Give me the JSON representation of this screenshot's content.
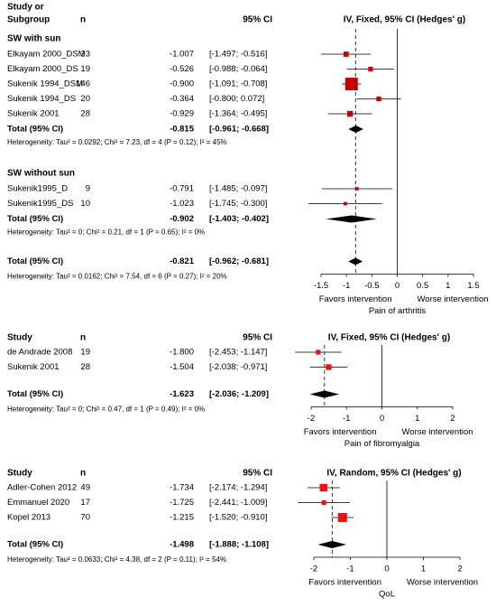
{
  "chart_data": [
    {
      "type": "forest",
      "study_header": [
        "Study or",
        "Subgroup"
      ],
      "n_header": "n",
      "ci_header": "95% CI",
      "plot_title": "IV, Fixed, 95% CI (Hedges' g)",
      "groups": [
        {
          "name": "SW with sun",
          "studies": [
            {
              "name": "Elkayam 2000_DSM",
              "n": 23,
              "value": -1.007,
              "ci": [
                -1.497,
                -0.516
              ],
              "ci_label": "[-1.497; -0.516]"
            },
            {
              "name": "Elkayam 2000_DS",
              "n": 19,
              "value": -0.526,
              "ci": [
                -0.988,
                -0.064
              ],
              "ci_label": "[-0.988; -0.064]"
            },
            {
              "name": "Sukenik 1994_DSM",
              "n": 146,
              "value": -0.9,
              "value_label": "-0.900",
              "ci": [
                -1.091,
                -0.708
              ],
              "ci_label": "[-1.091; -0.708]"
            },
            {
              "name": "Sukenik 1994_DS",
              "n": 20,
              "value": -0.364,
              "ci": [
                -0.8,
                0.072
              ],
              "ci_label": "[-0.800;  0.072]"
            },
            {
              "name": "Sukenik 2001",
              "n": 28,
              "value": -0.929,
              "ci": [
                -1.364,
                -0.495
              ],
              "ci_label": "[-1.364; -0.495]"
            }
          ],
          "total": {
            "name": "Total (95% CI)",
            "value": -0.815,
            "ci": [
              -0.961,
              -0.668
            ],
            "ci_label": "[-0.961; -0.668]"
          },
          "heterogeneity": "Heterogeneity: Tau² = 0.0292; Chi² = 7.23, df = 4 (P = 0.12); I² = 45%"
        },
        {
          "name": "SW without sun",
          "studies": [
            {
              "name": "Sukenik1995_D",
              "n": 9,
              "value": -0.791,
              "ci": [
                -1.485,
                -0.097
              ],
              "ci_label": "[-1.485; -0.097]"
            },
            {
              "name": "Sukenik1995_DS",
              "n": 10,
              "value": -1.023,
              "ci": [
                -1.745,
                -0.3
              ],
              "ci_label": "[-1.745; -0.300]"
            }
          ],
          "total": {
            "name": "Total (95% CI)",
            "value": -0.902,
            "ci": [
              -1.403,
              -0.402
            ],
            "ci_label": "[-1.403; -0.402]"
          },
          "heterogeneity": "Heterogeneity: Tau² = 0; Chi² = 0.21, df = 1 (P = 0.65); I² = 0%"
        }
      ],
      "total": {
        "name": "Total (95% CI)",
        "value": -0.821,
        "ci": [
          -0.962,
          -0.681
        ],
        "ci_label": "[-0.962; -0.681]"
      },
      "heterogeneity": "Heterogeneity: Tau² = 0.0162; Chi² = 7.54, df = 6 (P = 0.27); I² = 20%",
      "xlim": [
        -1.5,
        1.5
      ],
      "xticks": [
        -1.5,
        -1,
        -0.5,
        0,
        0.5,
        1,
        1.5
      ],
      "favors_left": "Favors intervention",
      "favors_right": "Worse intervention",
      "xlabel": "Pain of arthritis",
      "color": "#cc0000"
    },
    {
      "type": "forest",
      "study_header": [
        "Study"
      ],
      "n_header": "n",
      "ci_header": "95% CI",
      "plot_title": "IV, Fixed, 95% CI (Hedges' g)",
      "studies": [
        {
          "name": "de Andrade 2008",
          "n": 19,
          "value": -1.8,
          "value_label": "-1.800",
          "ci": [
            -2.453,
            -1.147
          ],
          "ci_label": "[-2.453; -1.147]"
        },
        {
          "name": "Sukenik 2001",
          "n": 28,
          "value": -1.504,
          "ci": [
            -2.038,
            -0.971
          ],
          "ci_label": "[-2.038; -0.971]"
        }
      ],
      "total": {
        "name": "Total (95% CI)",
        "value": -1.623,
        "ci": [
          -2.036,
          -1.209
        ],
        "ci_label": "[-2.036; -1.209]"
      },
      "heterogeneity": "Heterogeneity: Tau² = 0; Chi² = 0.47, df = 1 (P = 0.49); I² = 0%",
      "xlim": [
        -2,
        2
      ],
      "xticks": [
        -2,
        -1,
        0,
        1,
        2
      ],
      "favors_left": "Favors intervention",
      "favors_right": "Worse intervention",
      "xlabel": "Pain of fibromyalgia",
      "color": "#ee1111"
    },
    {
      "type": "forest",
      "study_header": [
        "Study"
      ],
      "n_header": "n",
      "ci_header": "95% CI",
      "plot_title": "IV, Random, 95% CI (Hedges' g)",
      "studies": [
        {
          "name": "Adler-Cohen 2012",
          "n": 49,
          "value": -1.734,
          "ci": [
            -2.174,
            -1.294
          ],
          "ci_label": "[-2.174; -1.294]"
        },
        {
          "name": "Emmanuel 2020",
          "n": 17,
          "value": -1.725,
          "ci": [
            -2.441,
            -1.009
          ],
          "ci_label": "[-2.441; -1.009]"
        },
        {
          "name": "Kopel 2013",
          "n": 70,
          "value": -1.215,
          "ci": [
            -1.52,
            -0.91
          ],
          "ci_label": "[-1.520; -0.910]"
        }
      ],
      "total": {
        "name": "Total (95% CI)",
        "value": -1.498,
        "ci": [
          -1.888,
          -1.108
        ],
        "ci_label": "[-1.888; -1.108]"
      },
      "heterogeneity": "Heterogeneity: Tau² = 0.0633; Chi² = 4.38, df = 2 (P = 0.11); I² = 54%",
      "xlim": [
        -2,
        2
      ],
      "xticks": [
        -2,
        -1,
        0,
        1,
        2
      ],
      "favors_left": "Favors intervention",
      "favors_right": "Worse intervention",
      "xlabel": "QoL",
      "color": "#ee1111"
    }
  ]
}
